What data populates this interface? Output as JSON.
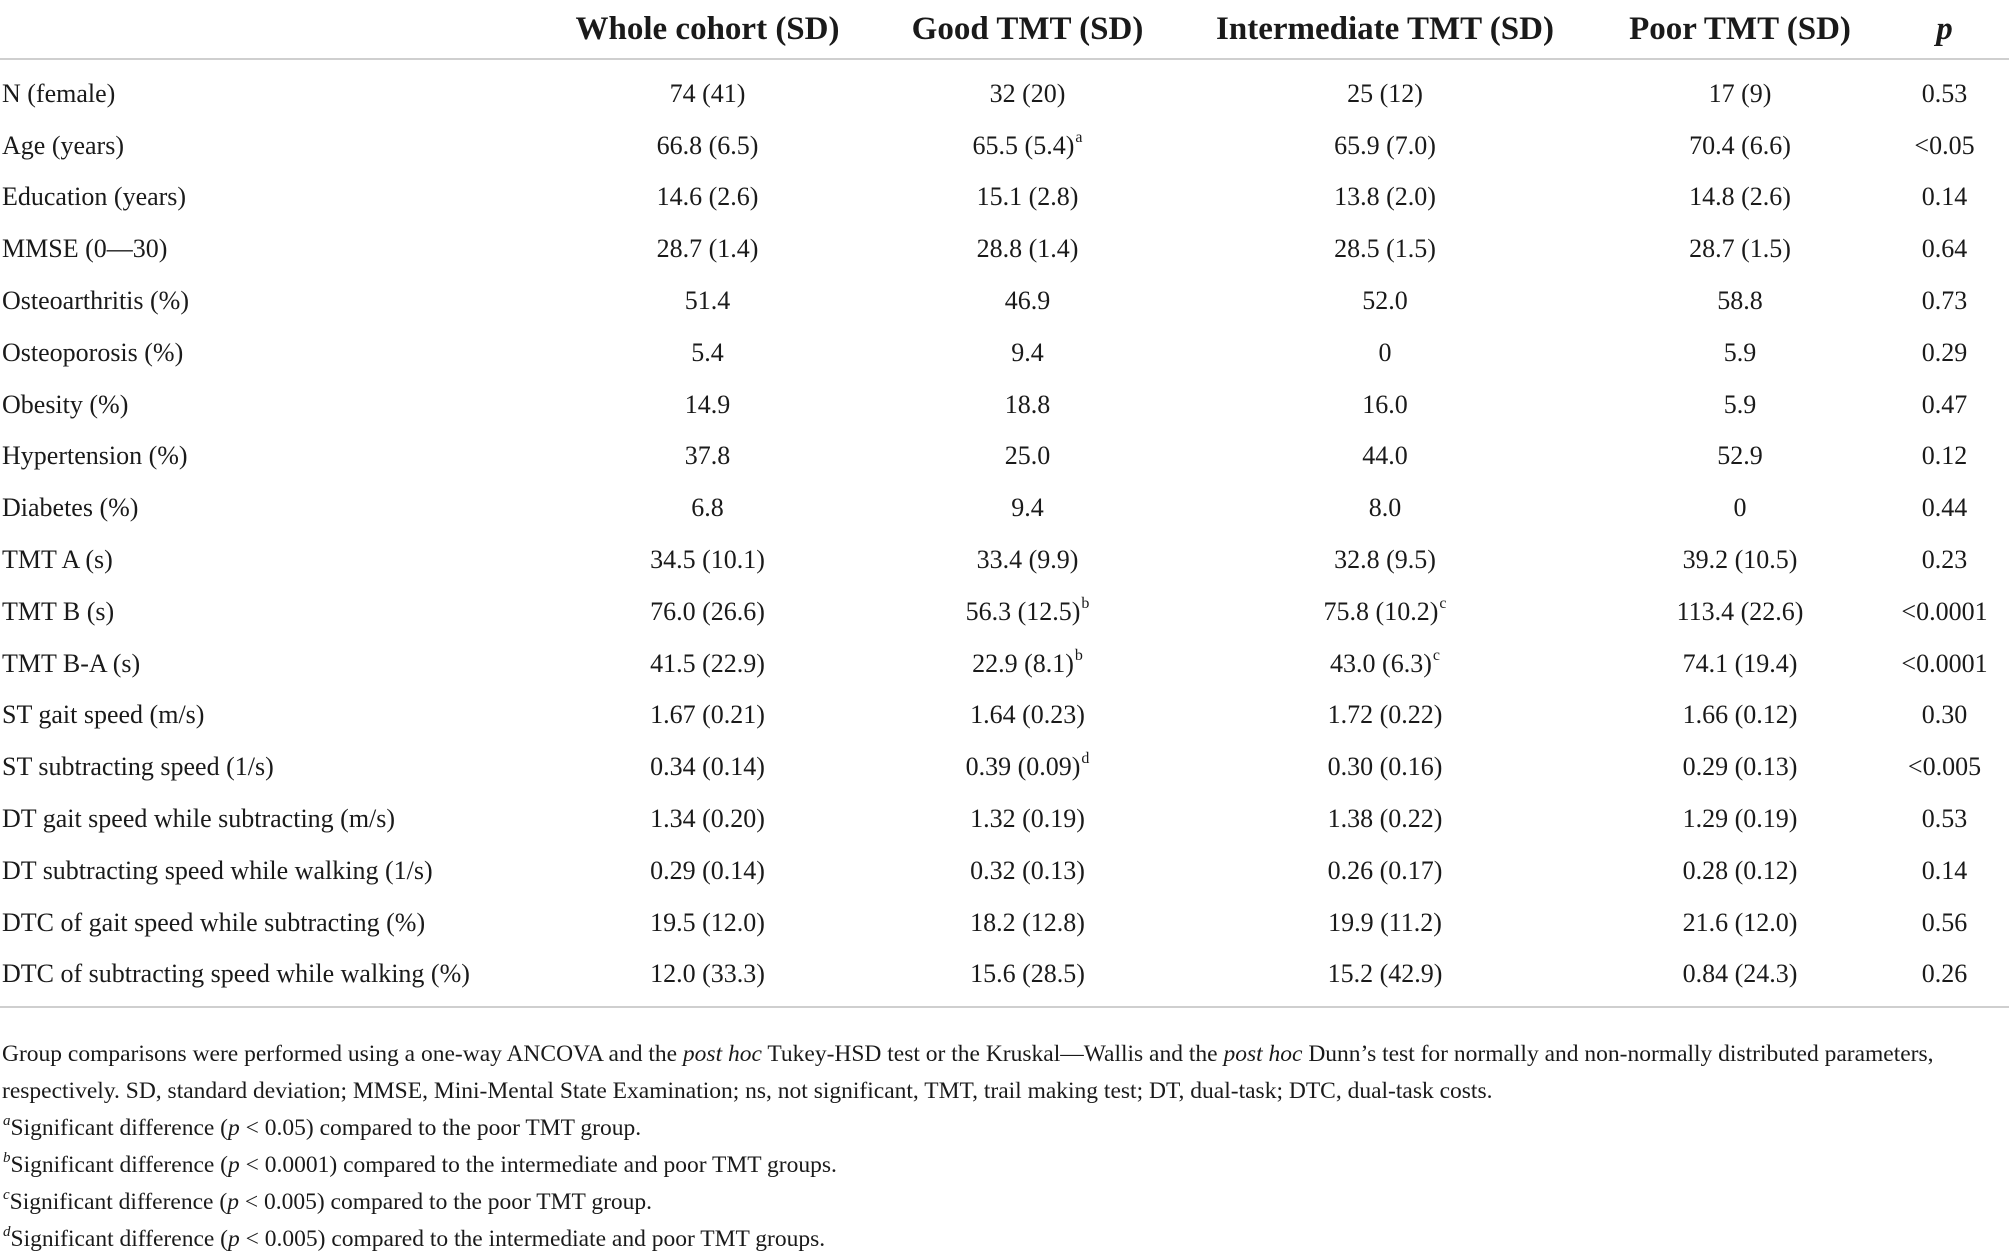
{
  "table": {
    "headers": [
      "",
      "Whole cohort (SD)",
      "Good TMT (SD)",
      "Intermediate TMT (SD)",
      "Poor TMT (SD)",
      "p"
    ],
    "rows": [
      {
        "label": "N (female)",
        "cells": [
          {
            "v": "74 (41)"
          },
          {
            "v": "32 (20)"
          },
          {
            "v": "25 (12)"
          },
          {
            "v": "17 (9)"
          },
          {
            "v": "0.53"
          }
        ]
      },
      {
        "label": "Age (years)",
        "cells": [
          {
            "v": "66.8 (6.5)"
          },
          {
            "v": "65.5 (5.4)",
            "sup": "a"
          },
          {
            "v": "65.9 (7.0)"
          },
          {
            "v": "70.4 (6.6)"
          },
          {
            "v": "<0.05"
          }
        ]
      },
      {
        "label": "Education (years)",
        "cells": [
          {
            "v": "14.6 (2.6)"
          },
          {
            "v": "15.1 (2.8)"
          },
          {
            "v": "13.8 (2.0)"
          },
          {
            "v": "14.8 (2.6)"
          },
          {
            "v": "0.14"
          }
        ]
      },
      {
        "label": "MMSE (0—30)",
        "cells": [
          {
            "v": "28.7 (1.4)"
          },
          {
            "v": "28.8 (1.4)"
          },
          {
            "v": "28.5 (1.5)"
          },
          {
            "v": "28.7 (1.5)"
          },
          {
            "v": "0.64"
          }
        ]
      },
      {
        "label": "Osteoarthritis (%)",
        "cells": [
          {
            "v": "51.4"
          },
          {
            "v": "46.9"
          },
          {
            "v": "52.0"
          },
          {
            "v": "58.8"
          },
          {
            "v": "0.73"
          }
        ]
      },
      {
        "label": "Osteoporosis (%)",
        "cells": [
          {
            "v": "5.4"
          },
          {
            "v": "9.4"
          },
          {
            "v": "0"
          },
          {
            "v": "5.9"
          },
          {
            "v": "0.29"
          }
        ]
      },
      {
        "label": "Obesity (%)",
        "cells": [
          {
            "v": "14.9"
          },
          {
            "v": "18.8"
          },
          {
            "v": "16.0"
          },
          {
            "v": "5.9"
          },
          {
            "v": "0.47"
          }
        ]
      },
      {
        "label": "Hypertension (%)",
        "cells": [
          {
            "v": "37.8"
          },
          {
            "v": "25.0"
          },
          {
            "v": "44.0"
          },
          {
            "v": "52.9"
          },
          {
            "v": "0.12"
          }
        ]
      },
      {
        "label": "Diabetes (%)",
        "cells": [
          {
            "v": "6.8"
          },
          {
            "v": "9.4"
          },
          {
            "v": "8.0"
          },
          {
            "v": "0"
          },
          {
            "v": "0.44"
          }
        ]
      },
      {
        "label": "TMT A (s)",
        "cells": [
          {
            "v": "34.5 (10.1)"
          },
          {
            "v": "33.4 (9.9)"
          },
          {
            "v": "32.8 (9.5)"
          },
          {
            "v": "39.2 (10.5)"
          },
          {
            "v": "0.23"
          }
        ]
      },
      {
        "label": "TMT B (s)",
        "cells": [
          {
            "v": "76.0 (26.6)"
          },
          {
            "v": "56.3 (12.5)",
            "sup": "b"
          },
          {
            "v": "75.8 (10.2)",
            "sup": "c"
          },
          {
            "v": "113.4 (22.6)"
          },
          {
            "v": "<0.0001"
          }
        ]
      },
      {
        "label": "TMT B-A (s)",
        "cells": [
          {
            "v": "41.5 (22.9)"
          },
          {
            "v": "22.9 (8.1)",
            "sup": "b"
          },
          {
            "v": "43.0 (6.3)",
            "sup": "c"
          },
          {
            "v": "74.1 (19.4)"
          },
          {
            "v": "<0.0001"
          }
        ]
      },
      {
        "label": "ST gait speed (m/s)",
        "cells": [
          {
            "v": "1.67 (0.21)"
          },
          {
            "v": "1.64 (0.23)"
          },
          {
            "v": "1.72 (0.22)"
          },
          {
            "v": "1.66 (0.12)"
          },
          {
            "v": "0.30"
          }
        ]
      },
      {
        "label": "ST subtracting speed (1/s)",
        "cells": [
          {
            "v": "0.34 (0.14)"
          },
          {
            "v": "0.39 (0.09)",
            "sup": "d"
          },
          {
            "v": "0.30 (0.16)"
          },
          {
            "v": "0.29 (0.13)"
          },
          {
            "v": "<0.005"
          }
        ]
      },
      {
        "label": "DT gait speed while subtracting (m/s)",
        "cells": [
          {
            "v": "1.34 (0.20)"
          },
          {
            "v": "1.32 (0.19)"
          },
          {
            "v": "1.38 (0.22)"
          },
          {
            "v": "1.29 (0.19)"
          },
          {
            "v": "0.53"
          }
        ]
      },
      {
        "label": "DT subtracting speed while walking (1/s)",
        "cells": [
          {
            "v": "0.29 (0.14)"
          },
          {
            "v": "0.32 (0.13)"
          },
          {
            "v": "0.26 (0.17)"
          },
          {
            "v": "0.28 (0.12)"
          },
          {
            "v": "0.14"
          }
        ]
      },
      {
        "label": "DTC of gait speed while subtracting (%)",
        "cells": [
          {
            "v": "19.5 (12.0)"
          },
          {
            "v": "18.2 (12.8)"
          },
          {
            "v": "19.9 (11.2)"
          },
          {
            "v": "21.6 (12.0)"
          },
          {
            "v": "0.56"
          }
        ]
      },
      {
        "label": "DTC of subtracting speed while walking (%)",
        "cells": [
          {
            "v": "12.0 (33.3)"
          },
          {
            "v": "15.6 (28.5)"
          },
          {
            "v": "15.2 (42.9)"
          },
          {
            "v": "0.84 (24.3)"
          },
          {
            "v": "0.26"
          }
        ]
      }
    ]
  },
  "notes": {
    "methods": {
      "t1": "Group comparisons were performed using a one-way ANCOVA and the ",
      "i1": "post hoc",
      "t2": " Tukey-HSD test or the Kruskal—Wallis and the ",
      "i2": "post hoc",
      "t3": " Dunn’s test for normally and non-normally distributed parameters, respectively. SD, standard deviation; MMSE, Mini-Mental State Examination; ns, not significant, TMT, trail making test; DT, dual-task; DTC, dual-task costs."
    },
    "footnotes": [
      {
        "mark": "a",
        "pre": "Significant difference (",
        "p": "p",
        "post": " < 0.05) compared to the poor TMT group."
      },
      {
        "mark": "b",
        "pre": "Significant difference (",
        "p": "p",
        "post": " < 0.0001) compared to the intermediate and poor TMT groups."
      },
      {
        "mark": "c",
        "pre": "Significant difference (",
        "p": "p",
        "post": " < 0.005) compared to the poor TMT group."
      },
      {
        "mark": "d",
        "pre": "Significant difference (",
        "p": "p",
        "post": " < 0.005) compared to the intermediate and poor TMT groups."
      }
    ]
  }
}
